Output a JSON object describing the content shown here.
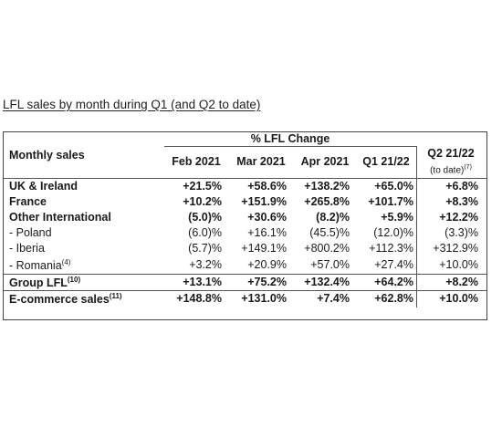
{
  "title": "LFL sales by month during Q1 (and Q2 to date)",
  "table": {
    "row_header": "Monthly sales",
    "group_header": "% LFL Change",
    "columns": [
      "Feb 2021",
      "Mar 2021",
      "Apr 2021",
      "Q1 21/22"
    ],
    "q2_header": "Q2 21/22",
    "q2_sub": "(to date)",
    "q2_sub_note": "(7)",
    "rows": [
      {
        "label": "UK & Ireland",
        "note": "",
        "bold": true,
        "values": [
          "+21.5%",
          "+58.6%",
          "+138.2%",
          "+65.0%",
          "+6.8%"
        ]
      },
      {
        "label": "France",
        "note": "",
        "bold": true,
        "values": [
          "+10.2%",
          "+151.9%",
          "+265.8%",
          "+101.7%",
          "+8.3%"
        ]
      },
      {
        "label": "Other International",
        "note": "",
        "bold": true,
        "values": [
          "(5.0)%",
          "+30.6%",
          "(8.2)%",
          "+5.9%",
          "+12.2%"
        ]
      },
      {
        "label": "- Poland",
        "note": "",
        "bold": false,
        "values": [
          "(6.0)%",
          "+16.1%",
          "(45.5)%",
          "(12.0)%",
          "(3.3)%"
        ]
      },
      {
        "label": "- Iberia",
        "note": "",
        "bold": false,
        "values": [
          "(5.7)%",
          "+149.1%",
          "+800.2%",
          "+112.3%",
          "+312.9%"
        ]
      },
      {
        "label": "- Romania",
        "note": "(4)",
        "bold": false,
        "values": [
          "+3.2%",
          "+20.9%",
          "+57.0%",
          "+27.4%",
          "+10.0%"
        ]
      },
      {
        "label": "Group LFL",
        "note": "(10)",
        "bold": true,
        "values": [
          "+13.1%",
          "+75.2%",
          "+132.4%",
          "+64.2%",
          "+8.2%"
        ]
      },
      {
        "label": "E-commerce sales",
        "note": "(11)",
        "bold": true,
        "values": [
          "+148.8%",
          "+131.0%",
          "+7.4%",
          "+62.8%",
          "+10.0%"
        ]
      }
    ]
  }
}
